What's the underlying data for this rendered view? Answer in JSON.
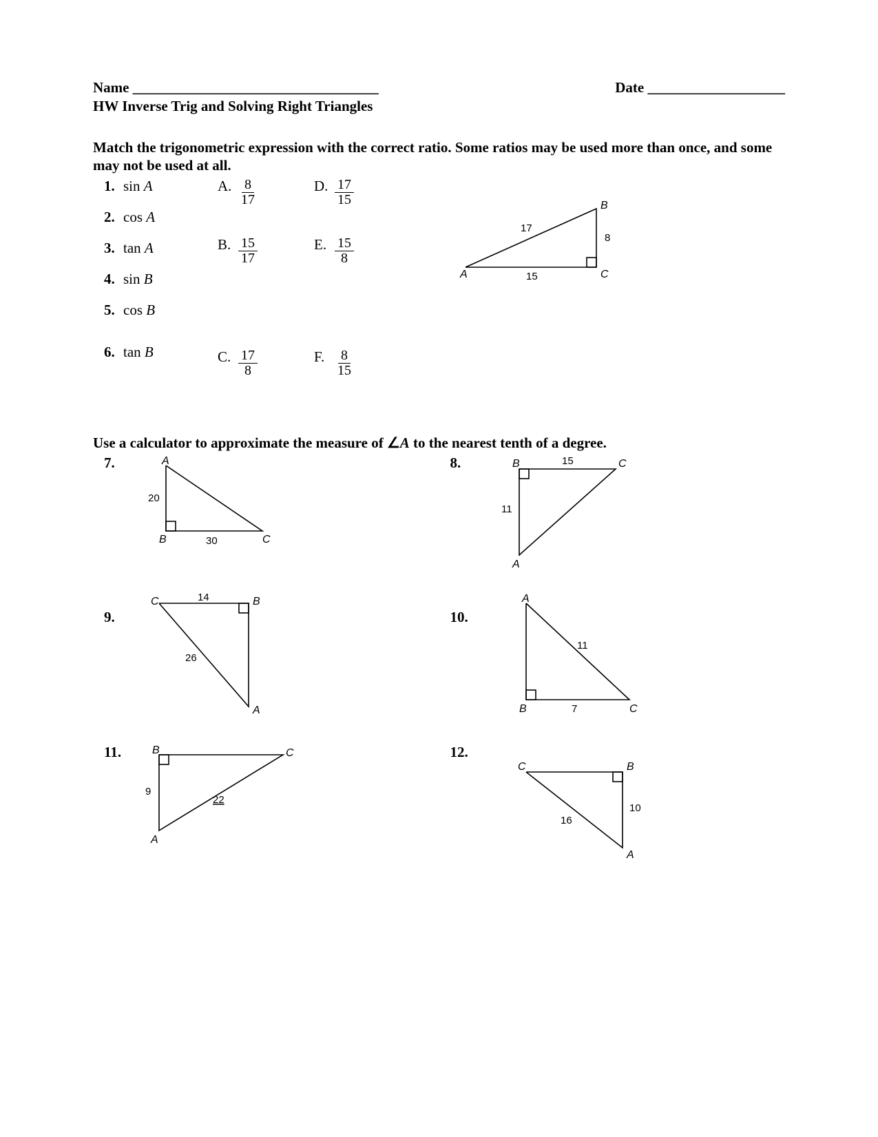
{
  "header": {
    "name_label": "Name",
    "name_blank": "__________________________________",
    "date_label": "Date",
    "date_blank": "___________________",
    "subtitle": "HW Inverse Trig and Solving Right Triangles"
  },
  "section1": {
    "instruction": "Match the trigonometric expression with the correct ratio. Some ratios may be used more than once, and some may not be used at all.",
    "questions": [
      {
        "n": "1.",
        "expr": "sin A"
      },
      {
        "n": "2.",
        "expr": "cos A"
      },
      {
        "n": "3.",
        "expr": "tan A"
      },
      {
        "n": "4.",
        "expr": "sin B"
      },
      {
        "n": "5.",
        "expr": "cos B"
      },
      {
        "n": "6.",
        "expr": "tan B"
      }
    ],
    "options": {
      "A": {
        "num": "8",
        "den": "17"
      },
      "B": {
        "num": "15",
        "den": "17"
      },
      "C": {
        "num": "17",
        "den": "8"
      },
      "D": {
        "num": "17",
        "den": "15"
      },
      "E": {
        "num": "15",
        "den": "8"
      },
      "F": {
        "num": "8",
        "den": "15"
      }
    },
    "triangle": {
      "vertices": {
        "A": "A",
        "B": "B",
        "C": "C"
      },
      "sides": {
        "hyp": "17",
        "opp": "8",
        "adj": "15"
      }
    }
  },
  "section2": {
    "instruction_pre": "Use a calculator to approximate the measure of ",
    "angle_sym": "∠",
    "angle_letter": "A",
    "instruction_post": " to the nearest tenth of a degree.",
    "problems": {
      "7": {
        "labels": {
          "A": "A",
          "B": "B",
          "C": "C"
        },
        "sides": {
          "AB": "20",
          "BC": "30"
        }
      },
      "8": {
        "labels": {
          "A": "A",
          "B": "B",
          "C": "C"
        },
        "sides": {
          "BC": "15",
          "AB": "11"
        }
      },
      "9": {
        "labels": {
          "A": "A",
          "B": "B",
          "C": "C"
        },
        "sides": {
          "CB": "14",
          "CA": "26"
        }
      },
      "10": {
        "labels": {
          "A": "A",
          "B": "B",
          "C": "C"
        },
        "sides": {
          "AC": "11",
          "BC": "7"
        }
      },
      "11": {
        "labels": {
          "A": "A",
          "B": "B",
          "C": "C"
        },
        "sides": {
          "AB": "9",
          "AC": "22"
        }
      },
      "12": {
        "labels": {
          "A": "A",
          "B": "B",
          "C": "C"
        },
        "sides": {
          "BA": "10",
          "CA": "16"
        }
      }
    }
  },
  "colors": {
    "ink": "#000000",
    "bg": "#ffffff"
  }
}
